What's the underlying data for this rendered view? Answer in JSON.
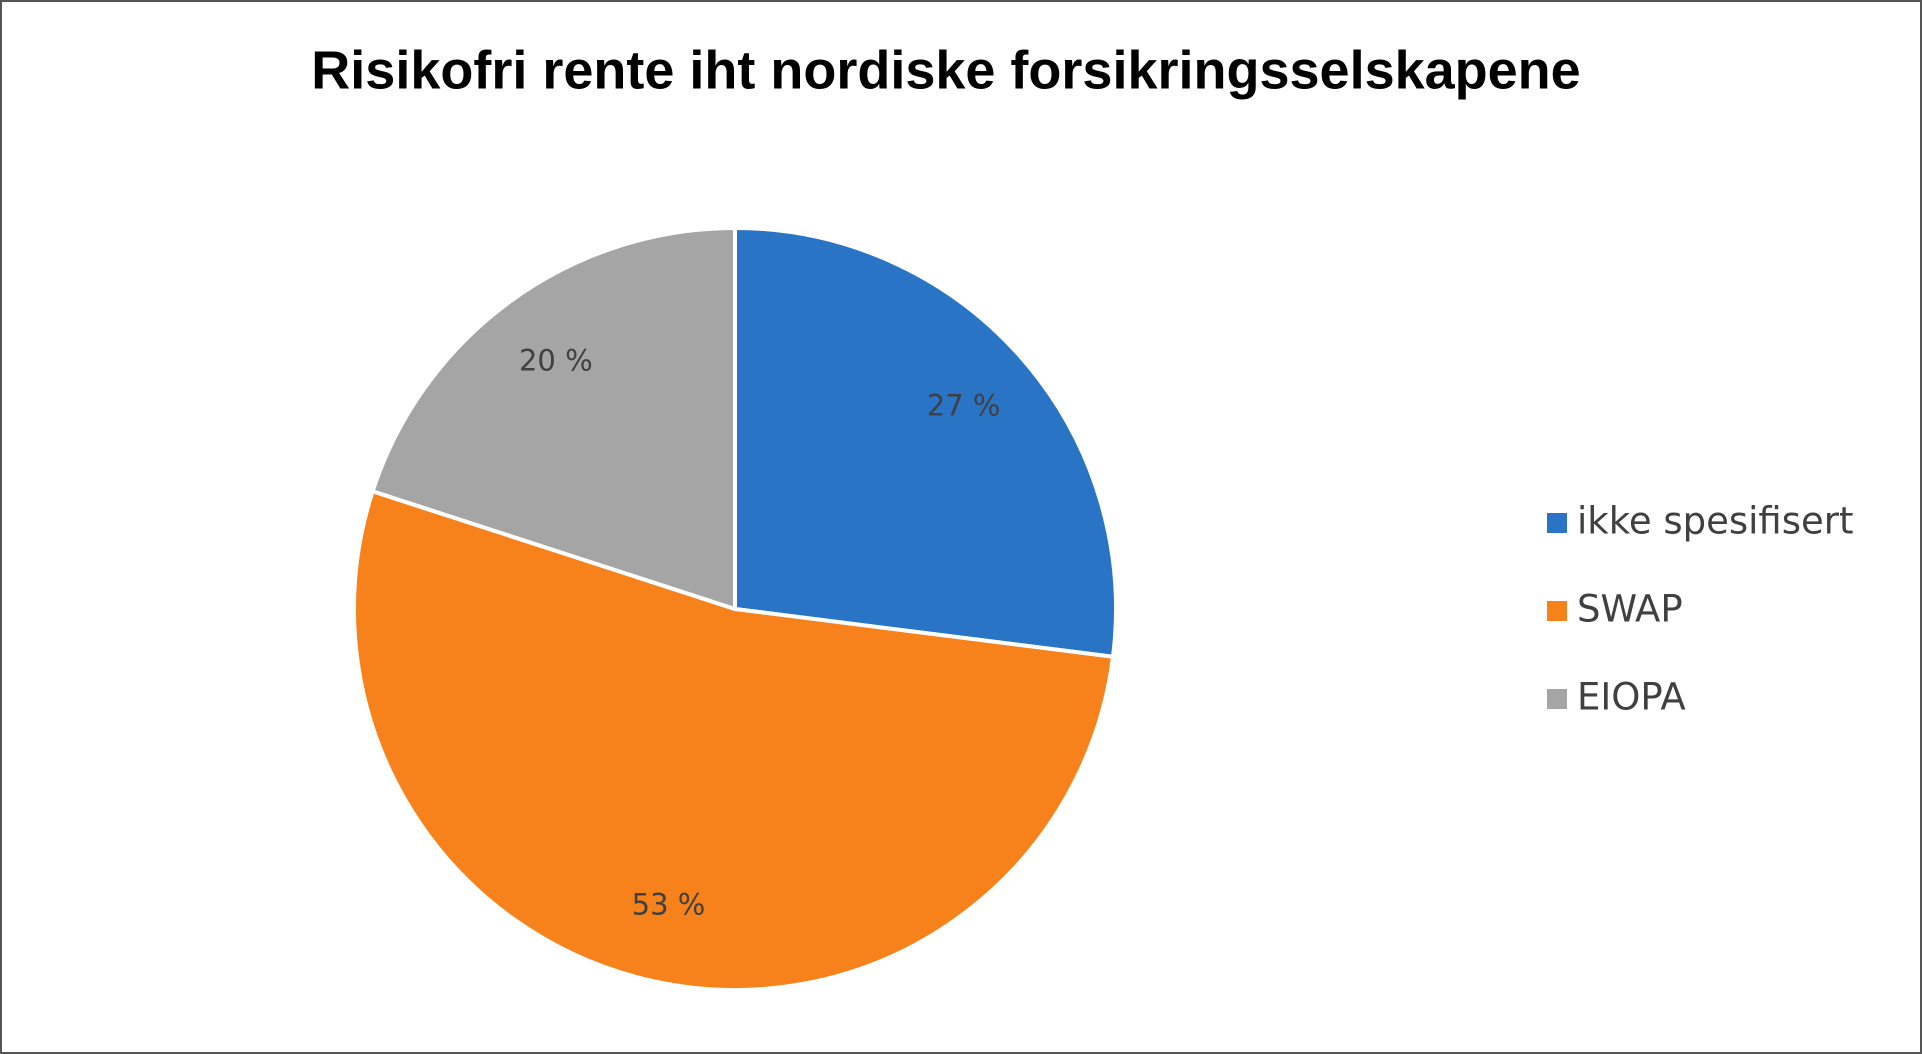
{
  "chart_data": {
    "type": "pie",
    "title": "Risikofri rente iht nordiske forsikringsselskapene",
    "categories": [
      "ikke spesifisert",
      "SWAP",
      "EIOPA"
    ],
    "values": [
      27,
      53,
      20
    ],
    "value_labels": [
      "27 %",
      "53 %",
      "20 %"
    ],
    "colors": [
      "#2a74c6",
      "#f7821b",
      "#a5a5a5"
    ],
    "legend": "right"
  }
}
